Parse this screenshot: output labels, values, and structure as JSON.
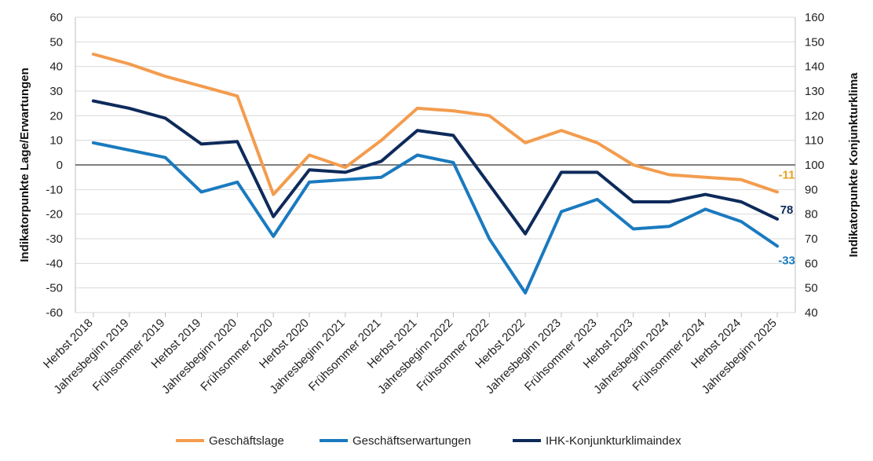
{
  "chart_data": {
    "type": "line",
    "title": "",
    "xlabel": "",
    "ylabel_left": "Indikatorpunkte Lage/Erwartungen",
    "ylabel_right": "Indikatorpunkte Konjunkturklima",
    "categories": [
      "Herbst 2018",
      "Jahresbeginn 2019",
      "Frühsommer 2019",
      "Herbst 2019",
      "Jahresbeginn 2020",
      "Frühsommer 2020",
      "Herbst 2020",
      "Jahresbeginn 2021",
      "Frühsommer 2021",
      "Herbst 2021",
      "Jahresbeginn 2022",
      "Frühsommer 2022",
      "Herbst 2022",
      "Jahresbeginn 2023",
      "Frühsommer 2023",
      "Herbst 2023",
      "Jahresbeginn 2024",
      "Frühsommer 2024",
      "Herbst 2024",
      "Jahresbeginn 2025"
    ],
    "ylim_left": [
      -60,
      60
    ],
    "yticks_left": [
      -60,
      -50,
      -40,
      -30,
      -20,
      -10,
      0,
      10,
      20,
      30,
      40,
      50,
      60
    ],
    "ylim_right": [
      40,
      160
    ],
    "yticks_right": [
      40,
      50,
      60,
      70,
      80,
      90,
      100,
      110,
      120,
      130,
      140,
      150,
      160
    ],
    "grid": true,
    "legend_position": "bottom",
    "series": [
      {
        "name": "Geschäftslage",
        "axis": "left",
        "color": "#F39C4E",
        "values": [
          45,
          41,
          36,
          32,
          28,
          -12,
          4,
          -1,
          10,
          23,
          22,
          20,
          9,
          14,
          9,
          0,
          -4,
          -5,
          -6,
          -11
        ],
        "end_label": "-11",
        "end_label_color": "#E8A020"
      },
      {
        "name": "Geschäftserwartungen",
        "axis": "left",
        "color": "#1A7ABF",
        "values": [
          9,
          6,
          3,
          -11,
          -7,
          -29,
          -7,
          -6,
          -5,
          4,
          1,
          -30,
          -52,
          -19,
          -14,
          -26,
          -25,
          -18,
          -23,
          -33
        ],
        "end_label": "-33",
        "end_label_color": "#1A7ABF"
      },
      {
        "name": "IHK-Konjunkturklimaindex",
        "axis": "right",
        "color": "#0D2A5A",
        "values": [
          126,
          123,
          119,
          108.5,
          109.5,
          79,
          98,
          97,
          101.5,
          114,
          112,
          92,
          72,
          97,
          97,
          85,
          85,
          88,
          85,
          78
        ],
        "end_label": "78",
        "end_label_color": "#0D2A5A"
      }
    ]
  }
}
